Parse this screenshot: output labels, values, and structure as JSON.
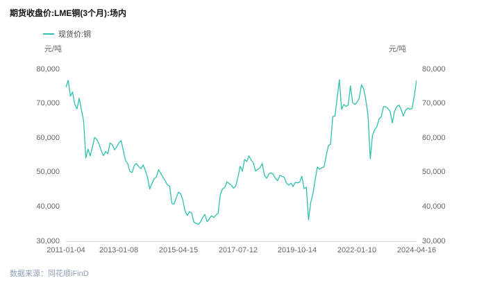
{
  "page": {
    "title": "期货收盘价:LME铜(3个月):场内",
    "source_note": "数据来源：同花顺iFinD"
  },
  "colors": {
    "line": "#2EBFAF",
    "axis_text": "#666666",
    "title_text": "#111111",
    "source_text": "#8C9DB4"
  },
  "chart_data": {
    "type": "line",
    "title": "期货收盘价:LME铜(3个月):场内",
    "legend_position": "top-left",
    "grid": false,
    "ylabel_left": "元/吨",
    "ylabel_right": "元/吨",
    "ylim": [
      30000,
      80000
    ],
    "y_tick_step": 10000,
    "y_tick_labels": [
      "80,000",
      "70,000",
      "60,000",
      "50,000",
      "40,000",
      "30,000"
    ],
    "x_tick_labels": [
      "2011-01-04",
      "2013-01-08",
      "2015-04-15",
      "2017-07-12",
      "2019-10-14",
      "2022-01-10",
      "2024-04-16"
    ],
    "x_tick_positions_month_index": [
      0,
      24,
      51,
      78,
      105,
      132,
      159
    ],
    "x_unit": "monthly samples, 2011-01 through 2024-04 (unit: 元/吨)",
    "series": [
      {
        "name": "现货价:铜",
        "color": "#2EBFAF",
        "values": [
          74800,
          76800,
          72200,
          73400,
          69800,
          68500,
          71600,
          68300,
          65000,
          54200,
          56800,
          54800,
          57400,
          60200,
          59600,
          58300,
          56400,
          54900,
          56100,
          55400,
          58600,
          58100,
          56600,
          57400,
          58600,
          59300,
          56400,
          53400,
          52600,
          50300,
          50000,
          52100,
          52600,
          51700,
          51100,
          52200,
          50600,
          48600,
          45200,
          46800,
          48200,
          48700,
          50800,
          49700,
          48600,
          47600,
          46400,
          46100,
          41000,
          40800,
          42600,
          44300,
          43800,
          42000,
          38800,
          37500,
          38600,
          38200,
          35600,
          35200,
          34900,
          35600,
          36900,
          37800,
          35700,
          36500,
          37400,
          36900,
          37600,
          38200,
          43500,
          45200,
          45600,
          47300,
          46800,
          46300,
          45400,
          46100,
          48600,
          51800,
          50300,
          53800,
          53200,
          54800,
          53600,
          52800,
          50400,
          50900,
          51400,
          52600,
          49200,
          48300,
          49600,
          49900,
          49400,
          48300,
          47600,
          49200,
          48900,
          48600,
          46900,
          46300,
          46900,
          45900,
          47100,
          47000,
          47200,
          48900,
          45300,
          45700,
          36200,
          41200,
          43800,
          47800,
          51600,
          50900,
          51400,
          51600,
          54800,
          57800,
          58200,
          66300,
          66400,
          71800,
          77000,
          68400,
          69800,
          69200,
          69600,
          75200,
          70300,
          69800,
          70400,
          71600,
          75500,
          74300,
          71200,
          66500,
          54000,
          60800,
          62400,
          63300,
          65600,
          66200,
          69200,
          69100,
          68600,
          67800,
          64400,
          67800,
          69100,
          69600,
          68300,
          66400,
          68100,
          68700,
          68400,
          68600,
          72400,
          76800
        ]
      }
    ]
  }
}
